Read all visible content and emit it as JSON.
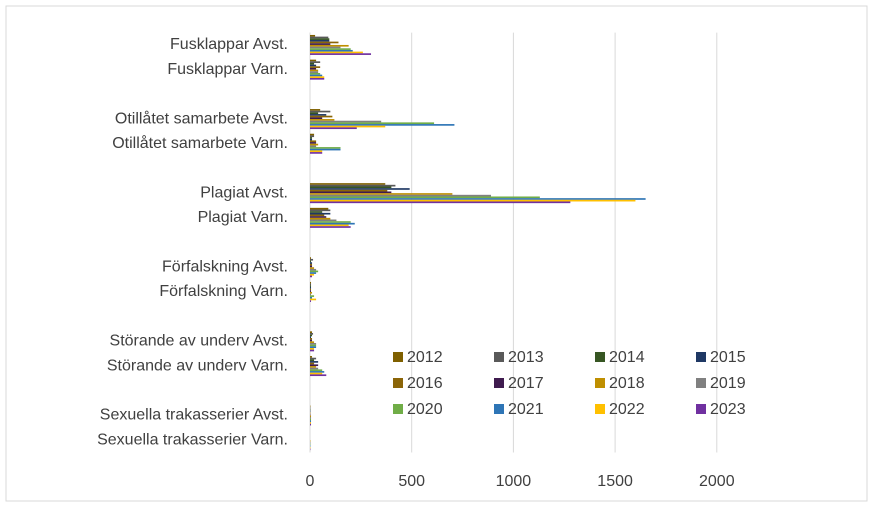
{
  "chart_data": {
    "type": "bar",
    "orientation": "horizontal",
    "categories": [
      "Fusklappar Avst.",
      "Fusklappar Varn.",
      null,
      "Otillåtet samarbete Avst.",
      "Otillåtet samarbete Varn.",
      null,
      "Plagiat Avst.",
      "Plagiat Varn.",
      null,
      "Förfalskning Avst.",
      "Förfalskning Varn.",
      null,
      "Störande av underv Avst.",
      "Störande av underv Varn.",
      null,
      "Sexuella trakasserier Avst.",
      "Sexuella trakasserier Varn."
    ],
    "series": [
      {
        "name": "2012",
        "color": "#7f6000",
        "values": [
          25,
          30,
          null,
          50,
          20,
          null,
          370,
          90,
          null,
          5,
          5,
          null,
          10,
          10,
          null,
          2,
          0
        ]
      },
      {
        "name": "2013",
        "color": "#595959",
        "values": [
          90,
          50,
          null,
          100,
          20,
          null,
          420,
          100,
          null,
          15,
          5,
          null,
          15,
          30,
          null,
          2,
          0
        ]
      },
      {
        "name": "2014",
        "color": "#375623",
        "values": [
          95,
          20,
          null,
          40,
          10,
          null,
          400,
          60,
          null,
          5,
          5,
          null,
          10,
          20,
          null,
          2,
          0
        ]
      },
      {
        "name": "2015",
        "color": "#1f3864",
        "values": [
          95,
          30,
          null,
          80,
          10,
          null,
          490,
          100,
          null,
          10,
          5,
          null,
          5,
          40,
          null,
          2,
          0
        ]
      },
      {
        "name": "2016",
        "color": "#8b6508",
        "values": [
          140,
          50,
          null,
          110,
          30,
          null,
          380,
          70,
          null,
          10,
          5,
          null,
          10,
          20,
          null,
          2,
          0
        ]
      },
      {
        "name": "2017",
        "color": "#3f1b4f",
        "values": [
          100,
          30,
          null,
          60,
          30,
          null,
          400,
          80,
          null,
          10,
          5,
          null,
          10,
          40,
          null,
          2,
          0
        ]
      },
      {
        "name": "2018",
        "color": "#bf8f00",
        "values": [
          190,
          40,
          null,
          120,
          40,
          null,
          700,
          100,
          null,
          20,
          10,
          null,
          20,
          30,
          null,
          5,
          2
        ]
      },
      {
        "name": "2019",
        "color": "#808080",
        "values": [
          150,
          40,
          null,
          350,
          30,
          null,
          890,
          130,
          null,
          30,
          5,
          null,
          30,
          40,
          null,
          5,
          2
        ]
      },
      {
        "name": "2020",
        "color": "#70ad47",
        "values": [
          200,
          50,
          null,
          610,
          150,
          null,
          1130,
          200,
          null,
          40,
          20,
          null,
          30,
          60,
          null,
          5,
          2
        ]
      },
      {
        "name": "2021",
        "color": "#2e75b6",
        "values": [
          210,
          60,
          null,
          710,
          150,
          null,
          1650,
          220,
          null,
          30,
          10,
          null,
          30,
          70,
          null,
          5,
          2
        ]
      },
      {
        "name": "2022",
        "color": "#ffc000",
        "values": [
          260,
          70,
          null,
          370,
          60,
          null,
          1600,
          190,
          null,
          20,
          30,
          null,
          20,
          60,
          null,
          5,
          2
        ]
      },
      {
        "name": "2023",
        "color": "#7030a0",
        "values": [
          300,
          70,
          null,
          230,
          60,
          null,
          1280,
          200,
          null,
          10,
          5,
          null,
          20,
          80,
          null,
          5,
          2
        ]
      }
    ],
    "xlim": [
      0,
      2500
    ],
    "xticks": [
      0,
      500,
      1000,
      1500,
      2000
    ],
    "grid": true
  }
}
